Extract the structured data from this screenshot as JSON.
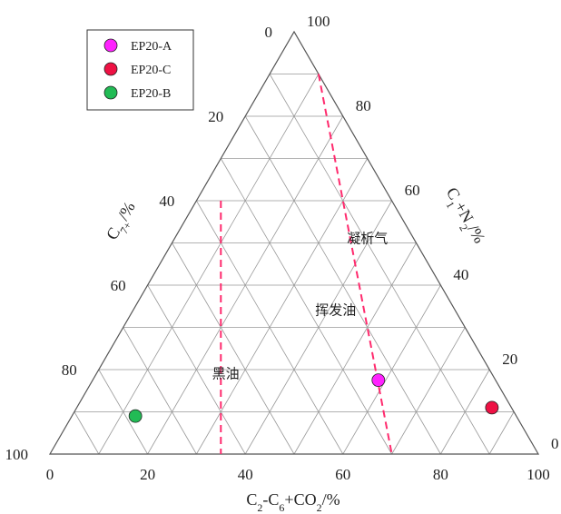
{
  "chart_data": {
    "type": "scatter",
    "subtype": "ternary",
    "axes": {
      "bottom": {
        "label_main": "C",
        "label_parts": [
          {
            "t": "C",
            "s": ""
          },
          {
            "t": "2",
            "s": "sub"
          },
          {
            "t": "-C",
            "s": ""
          },
          {
            "t": "6",
            "s": "sub"
          },
          {
            "t": "+CO",
            "s": ""
          },
          {
            "t": "2",
            "s": "sub"
          },
          {
            "t": "/%",
            "s": ""
          }
        ],
        "ticks": [
          "0",
          "20",
          "40",
          "60",
          "80",
          "100"
        ]
      },
      "left": {
        "label_parts": [
          {
            "t": "C",
            "s": ""
          },
          {
            "t": "7+",
            "s": "sub"
          },
          {
            "t": "/%",
            "s": ""
          }
        ],
        "ticks": [
          "0",
          "20",
          "40",
          "60",
          "80",
          "100"
        ]
      },
      "right": {
        "label_parts": [
          {
            "t": "C",
            "s": ""
          },
          {
            "t": "1",
            "s": "sub"
          },
          {
            "t": "+N",
            "s": ""
          },
          {
            "t": "2",
            "s": "sub"
          },
          {
            "t": "/%",
            "s": ""
          }
        ],
        "ticks": [
          "0",
          "20",
          "40",
          "60",
          "80",
          "100"
        ]
      }
    },
    "grid": true,
    "grid_step": 10,
    "boundary_lines": [
      {
        "name": "",
        "from": {
          "c1n2": 90,
          "c7": 0
        },
        "to": {
          "c1n2": 0,
          "c7": 30
        },
        "color": "#ff2a6d"
      },
      {
        "name": "",
        "from": {
          "c1n2": 60,
          "c7": 35
        },
        "to": {
          "c1n2": 0,
          "c7": 65
        },
        "color": "#ff2a6d"
      }
    ],
    "regions": [
      {
        "label": "凝析气",
        "c1n2": 50,
        "c7": 10
      },
      {
        "label": "挥发油",
        "c1n2": 33,
        "c7": 25
      },
      {
        "label": "黑油",
        "c1n2": 18,
        "c7": 55
      }
    ],
    "series": [
      {
        "name": "EP20-A",
        "color": "#ff22ff",
        "points": [
          {
            "c2c6co2": 58.5,
            "c1n2": 17.5,
            "c7": 24
          }
        ]
      },
      {
        "name": "EP20-C",
        "color": "#ee1144",
        "points": [
          {
            "c2c6co2": 85,
            "c1n2": 11,
            "c7": 4
          }
        ]
      },
      {
        "name": "EP20-B",
        "color": "#22bb55",
        "points": [
          {
            "c2c6co2": 13,
            "c1n2": 9,
            "c7": 78
          }
        ]
      }
    ],
    "legend": {
      "position": "top-left"
    }
  }
}
